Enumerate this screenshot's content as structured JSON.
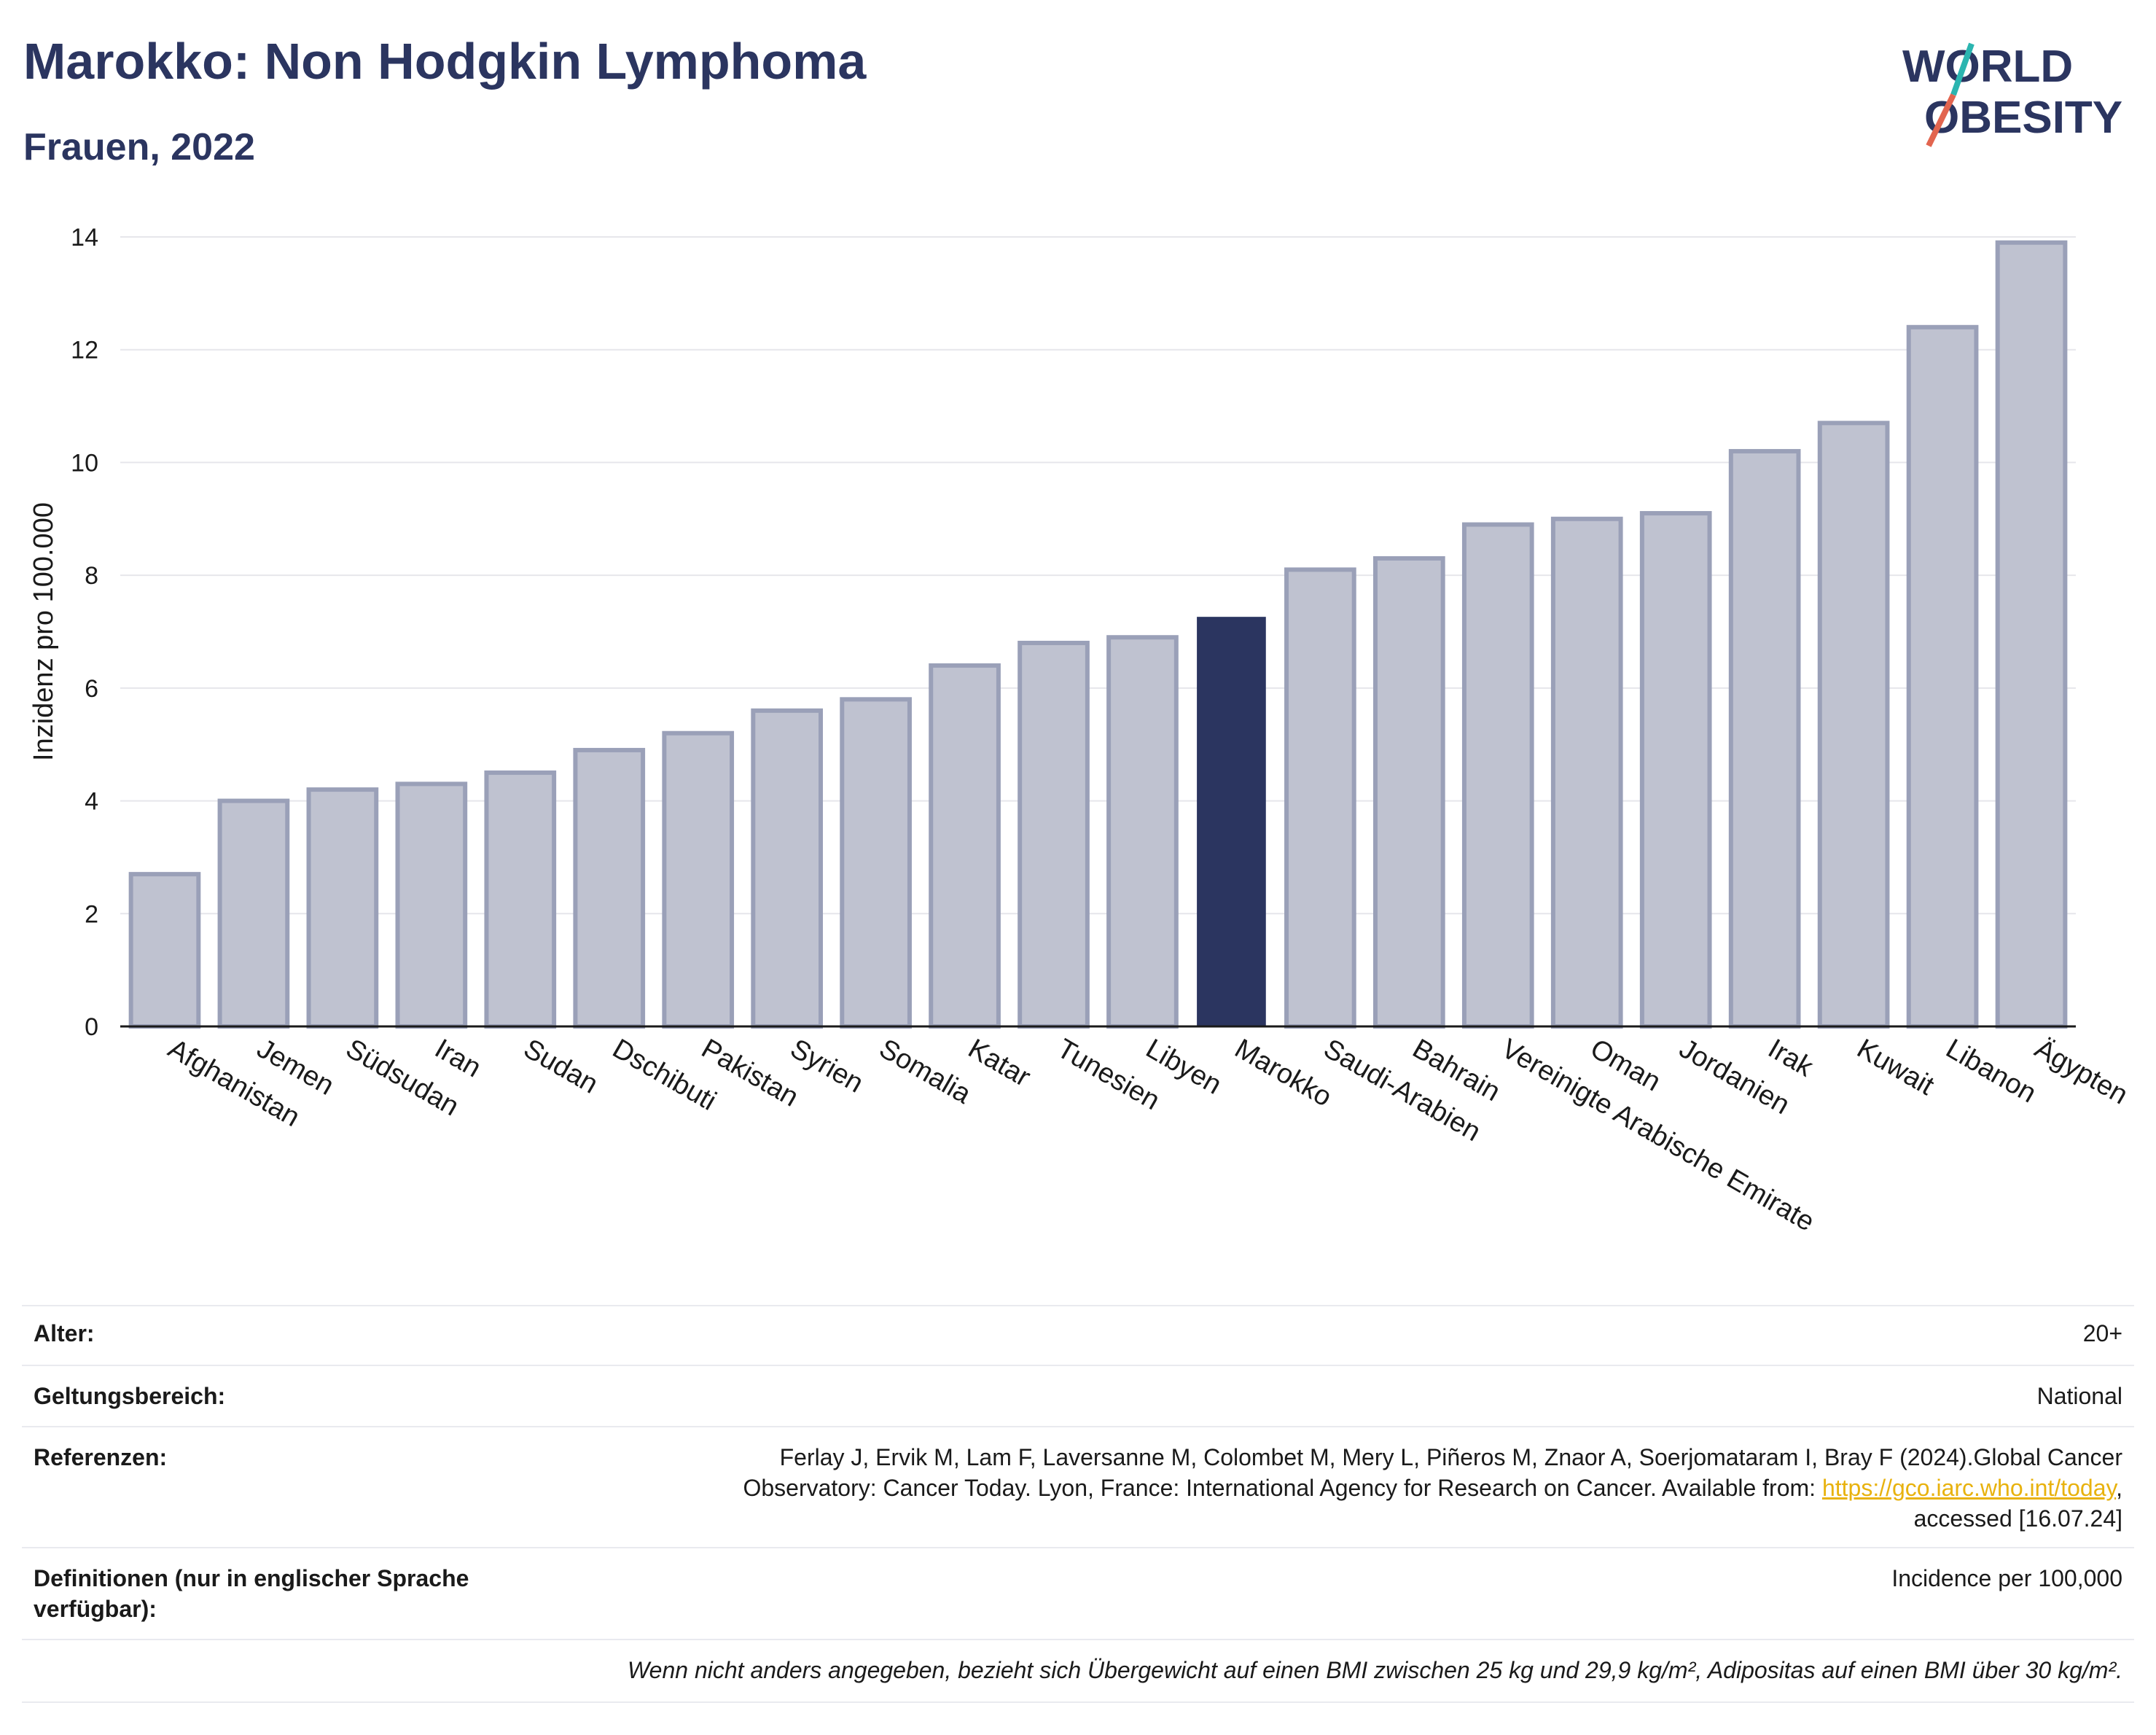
{
  "header": {
    "title": "Marokko: Non Hodgkin Lymphoma",
    "subtitle": "Frauen, 2022"
  },
  "logo": {
    "line1": "WORLD",
    "line2": "OBESITY",
    "accent_teal": "#2bb5b0",
    "accent_red": "#e2654f",
    "text_color": "#2b3560"
  },
  "chart_data": {
    "type": "bar",
    "title": "",
    "xlabel": "",
    "ylabel": "Inzidenz pro 100.000",
    "ylim": [
      0,
      14
    ],
    "yticks": [
      0,
      2,
      4,
      6,
      8,
      10,
      12,
      14
    ],
    "grid": true,
    "highlight": "Marokko",
    "colors": {
      "default": "#bfc2d0",
      "default_edge": "#9aa0b8",
      "highlight": "#2b3560"
    },
    "categories": [
      "Afghanistan",
      "Jemen",
      "Südsudan",
      "Iran",
      "Sudan",
      "Dschibuti",
      "Pakistan",
      "Syrien",
      "Somalia",
      "Katar",
      "Tunesien",
      "Libyen",
      "Marokko",
      "Saudi-Arabien",
      "Bahrain",
      "Vereinigte Arabische Emirate",
      "Oman",
      "Jordanien",
      "Irak",
      "Kuwait",
      "Libanon",
      "Ägypten"
    ],
    "values": [
      2.7,
      4.0,
      4.2,
      4.3,
      4.5,
      4.9,
      5.2,
      5.6,
      5.8,
      6.4,
      6.8,
      6.9,
      7.25,
      8.1,
      8.3,
      8.9,
      9.0,
      9.1,
      10.2,
      10.7,
      12.4,
      13.9
    ]
  },
  "meta": {
    "age_label": "Alter:",
    "age_value": "20+",
    "scope_label": "Geltungsbereich:",
    "scope_value": "National",
    "ref_label": "Referenzen:",
    "ref_line1": "Ferlay J, Ervik M, Lam F, Laversanne M, Colombet M, Mery L, Piñeros M, Znaor A, Soerjomataram I, Bray F (2024).Global Cancer",
    "ref_line2_pre": "Observatory: Cancer Today. Lyon, France: International Agency for Research on Cancer. Available from: ",
    "ref_link": "https://gco.iarc.who.int/today",
    "ref_line2_post": ",",
    "ref_line3": "accessed [16.07.24]",
    "def_label": "Definitionen (nur in englischer Sprache verfügbar):",
    "def_value": "Incidence per 100,000",
    "note": "Wenn nicht anders angegeben, bezieht sich Übergewicht auf einen BMI zwischen 25 kg und 29,9 kg/m², Adipositas auf einen BMI über 30 kg/m²."
  }
}
